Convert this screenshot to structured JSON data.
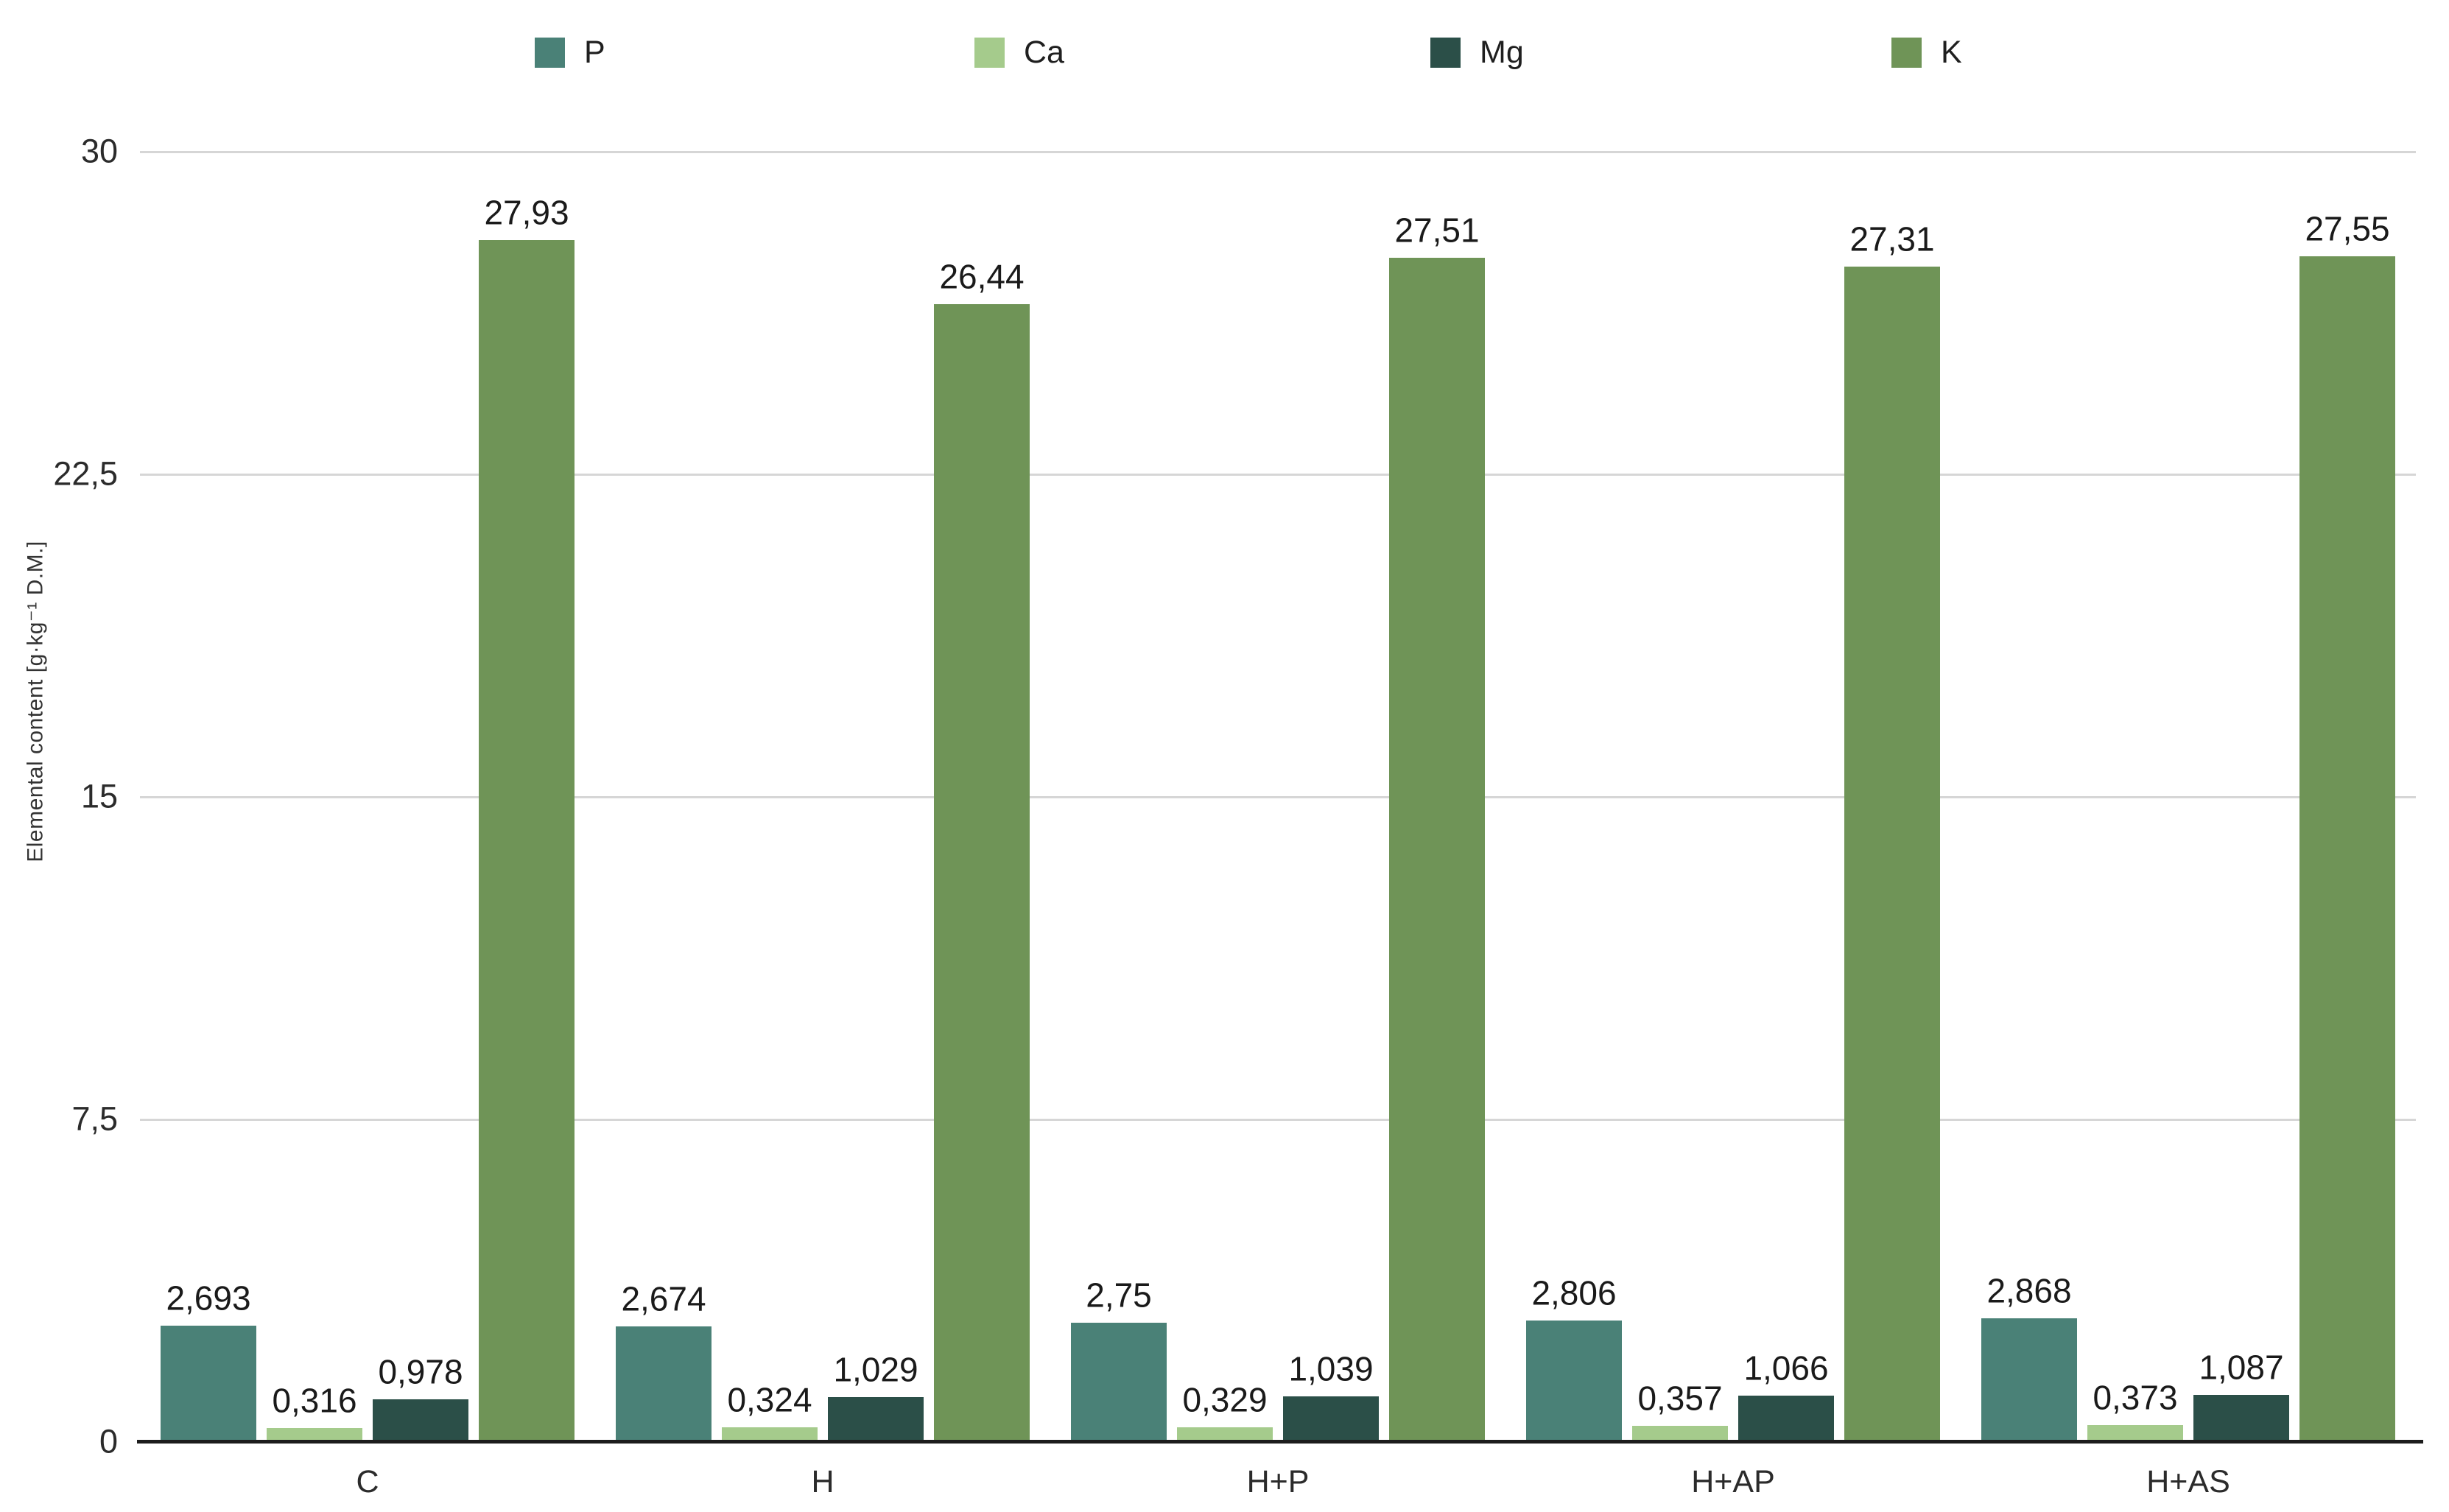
{
  "chart_data": {
    "type": "bar",
    "title": "",
    "xlabel": "",
    "ylabel": "Elemental content [g·kg⁻¹ D.M.]",
    "ylim": [
      0,
      30
    ],
    "grid": true,
    "legend_position": "top",
    "decimal_separator": ",",
    "categories": [
      "C",
      "H",
      "H+P",
      "H+AP",
      "H+AS"
    ],
    "yticks": [
      {
        "value": 30,
        "label": "30"
      },
      {
        "value": 22.5,
        "label": "22,5"
      },
      {
        "value": 15,
        "label": "15"
      },
      {
        "value": 7.5,
        "label": "7,5"
      },
      {
        "value": 0,
        "label": "0"
      }
    ],
    "series": [
      {
        "name": "P",
        "color": "#4A8177",
        "values": [
          2.693,
          2.674,
          2.75,
          2.806,
          2.868
        ],
        "labels": [
          "2,693",
          "2,674",
          "2,75",
          "2,806",
          "2,868"
        ]
      },
      {
        "name": "Ca",
        "color": "#A5CB8C",
        "values": [
          0.316,
          0.324,
          0.329,
          0.357,
          0.373
        ],
        "labels": [
          "0,316",
          "0,324",
          "0,329",
          "0,357",
          "0,373"
        ]
      },
      {
        "name": "Mg",
        "color": "#2B4F48",
        "values": [
          0.978,
          1.029,
          1.039,
          1.066,
          1.087
        ],
        "labels": [
          "0,978",
          "1,029",
          "1,039",
          "1,066",
          "1,087"
        ]
      },
      {
        "name": "K",
        "color": "#6F9457",
        "values": [
          27.93,
          26.44,
          27.51,
          27.31,
          27.55
        ],
        "labels": [
          "27,93",
          "26,44",
          "27,51",
          "27,31",
          "27,55"
        ]
      }
    ]
  }
}
